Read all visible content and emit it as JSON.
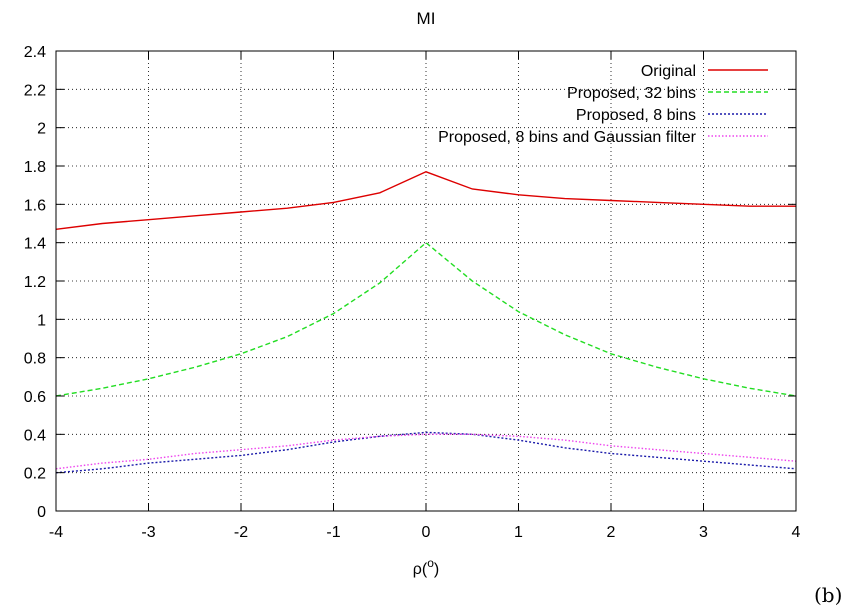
{
  "chart_data": {
    "type": "line",
    "title": "MI",
    "xlabel": "ρ(",
    "xlabel_sup": "o",
    "xlabel_close": ")",
    "ylabel": "",
    "xlim": [
      -4,
      4
    ],
    "ylim": [
      0,
      2.4
    ],
    "xticks": [
      "-4",
      "-3",
      "-2",
      "-1",
      "0",
      "1",
      "2",
      "3",
      "4"
    ],
    "yticks": [
      "0",
      "0.2",
      "0.4",
      "0.6",
      "0.8",
      "1",
      "1.2",
      "1.4",
      "1.6",
      "1.8",
      "2",
      "2.2",
      "2.4"
    ],
    "grid": true,
    "legend_position": "top-right",
    "panel_label": "(b)",
    "x": [
      -4,
      -3.5,
      -3,
      -2.5,
      -2,
      -1.5,
      -1,
      -0.5,
      0,
      0.5,
      1,
      1.5,
      2,
      2.5,
      3,
      3.5,
      4
    ],
    "series": [
      {
        "name": "Original",
        "color": "#dd0000",
        "dash": "solid",
        "values": [
          1.47,
          1.5,
          1.52,
          1.54,
          1.56,
          1.58,
          1.61,
          1.66,
          1.77,
          1.68,
          1.65,
          1.63,
          1.62,
          1.61,
          1.6,
          1.59,
          1.59
        ]
      },
      {
        "name": "Proposed, 32 bins",
        "color": "#22dd22",
        "dash": "dashed",
        "values": [
          0.6,
          0.64,
          0.69,
          0.75,
          0.82,
          0.91,
          1.03,
          1.19,
          1.4,
          1.2,
          1.04,
          0.92,
          0.82,
          0.75,
          0.69,
          0.64,
          0.6
        ]
      },
      {
        "name": "Proposed, 8 bins",
        "color": "#1a1aaa",
        "dash": "dotted",
        "values": [
          0.2,
          0.22,
          0.25,
          0.27,
          0.29,
          0.32,
          0.36,
          0.39,
          0.41,
          0.4,
          0.37,
          0.33,
          0.3,
          0.28,
          0.26,
          0.24,
          0.22
        ]
      },
      {
        "name": "Proposed, 8 bins and Gaussian filter",
        "color": "#ee44ee",
        "dash": "finedotted",
        "values": [
          0.22,
          0.25,
          0.27,
          0.3,
          0.32,
          0.34,
          0.37,
          0.39,
          0.4,
          0.4,
          0.39,
          0.37,
          0.34,
          0.32,
          0.3,
          0.28,
          0.26
        ]
      }
    ]
  }
}
